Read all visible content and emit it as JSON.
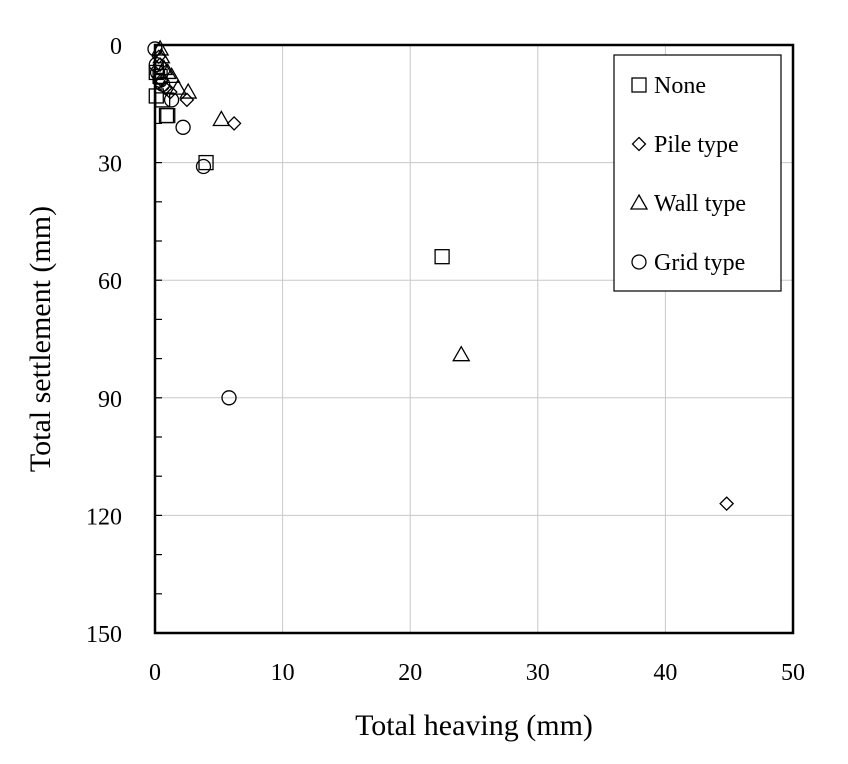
{
  "chart_data": {
    "type": "scatter",
    "title": "",
    "xlabel": "Total heaving (mm)",
    "ylabel": "Total settlement (mm)",
    "xlim": [
      0,
      50
    ],
    "ylim": [
      0,
      150
    ],
    "y_inverted": true,
    "grid": true,
    "legend_position": "top-right",
    "x_ticks": [
      "0",
      "10",
      "20",
      "30",
      "40",
      "50"
    ],
    "y_ticks": [
      "0",
      "30",
      "60",
      "90",
      "120",
      "150"
    ],
    "series": [
      {
        "name": "None",
        "marker": "square",
        "points": [
          [
            0.1,
            7
          ],
          [
            0.1,
            13
          ],
          [
            0.4,
            8
          ],
          [
            0.6,
            14
          ],
          [
            0.9,
            18
          ],
          [
            1.0,
            18
          ],
          [
            4.0,
            30
          ],
          [
            22.5,
            54
          ]
        ]
      },
      {
        "name": "Pile type",
        "marker": "diamond",
        "points": [
          [
            0.3,
            3
          ],
          [
            0.4,
            5
          ],
          [
            0.5,
            9
          ],
          [
            0.8,
            11
          ],
          [
            1.2,
            12
          ],
          [
            2.5,
            14
          ],
          [
            6.2,
            20
          ],
          [
            44.8,
            117
          ]
        ]
      },
      {
        "name": "Wall type",
        "marker": "triangle",
        "points": [
          [
            0.4,
            1
          ],
          [
            0.5,
            3
          ],
          [
            0.7,
            6
          ],
          [
            1.0,
            7
          ],
          [
            1.3,
            8
          ],
          [
            1.8,
            11
          ],
          [
            2.6,
            12
          ],
          [
            5.2,
            19
          ],
          [
            24.0,
            79
          ]
        ]
      },
      {
        "name": "Grid type",
        "marker": "circle",
        "points": [
          [
            0.0,
            1
          ],
          [
            0.1,
            5
          ],
          [
            0.2,
            7
          ],
          [
            0.4,
            9
          ],
          [
            0.6,
            10
          ],
          [
            1.3,
            14
          ],
          [
            2.2,
            21
          ],
          [
            3.8,
            31
          ],
          [
            5.8,
            90
          ]
        ]
      }
    ]
  }
}
